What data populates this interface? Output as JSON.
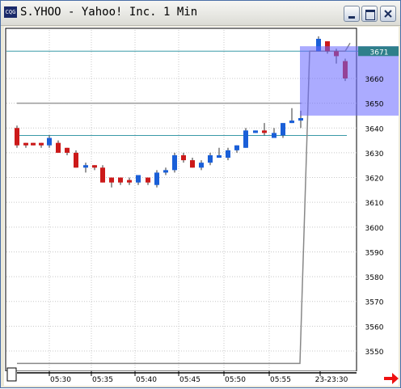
{
  "window": {
    "title": "S.YHOO - Yahoo! Inc. 1 Min",
    "icon": "chart-app-icon"
  },
  "chart_data": {
    "type": "candlestick",
    "price_ticks": [
      "3660",
      "3650",
      "3640",
      "3630",
      "3620",
      "3610",
      "3600",
      "3590",
      "3580",
      "3570",
      "3560",
      "3550"
    ],
    "price_tick_values": [
      3660,
      3650,
      3640,
      3630,
      3620,
      3610,
      3600,
      3590,
      3580,
      3570,
      3560,
      3550
    ],
    "time_ticks": [
      "05:30",
      "05:35",
      "05:40",
      "05:45",
      "05:50",
      "05:55",
      "23-23:30"
    ],
    "ylim": [
      3545,
      3676
    ],
    "current_price_label": "3671",
    "current_price": 3671,
    "horizontal_lines": [
      3671,
      3650,
      3637
    ],
    "candles": [
      {
        "o": 3633,
        "c": 3640,
        "h": 3641,
        "l": 3632,
        "d": "down"
      },
      {
        "o": 3633,
        "c": 3634,
        "h": 3634,
        "l": 3632,
        "d": "down"
      },
      {
        "o": 3633,
        "c": 3634,
        "h": 3634,
        "l": 3633,
        "d": "down"
      },
      {
        "o": 3633,
        "c": 3634,
        "h": 3634,
        "l": 3632,
        "d": "down"
      },
      {
        "o": 3633,
        "c": 3636,
        "h": 3637,
        "l": 3632,
        "d": "up"
      },
      {
        "o": 3630,
        "c": 3634,
        "h": 3635,
        "l": 3630,
        "d": "down"
      },
      {
        "o": 3630,
        "c": 3632,
        "h": 3632,
        "l": 3629,
        "d": "down"
      },
      {
        "o": 3624,
        "c": 3630,
        "h": 3631,
        "l": 3624,
        "d": "down"
      },
      {
        "o": 3624,
        "c": 3625,
        "h": 3626,
        "l": 3622,
        "d": "up"
      },
      {
        "o": 3624,
        "c": 3625,
        "h": 3625,
        "l": 3623,
        "d": "down"
      },
      {
        "o": 3618,
        "c": 3624,
        "h": 3625,
        "l": 3618,
        "d": "down"
      },
      {
        "o": 3618,
        "c": 3620,
        "h": 3620,
        "l": 3616,
        "d": "down"
      },
      {
        "o": 3618,
        "c": 3620,
        "h": 3620,
        "l": 3617,
        "d": "down"
      },
      {
        "o": 3618,
        "c": 3619,
        "h": 3620,
        "l": 3617,
        "d": "down"
      },
      {
        "o": 3618,
        "c": 3621,
        "h": 3621,
        "l": 3617,
        "d": "up"
      },
      {
        "o": 3618,
        "c": 3620,
        "h": 3620,
        "l": 3617,
        "d": "down"
      },
      {
        "o": 3617,
        "c": 3622,
        "h": 3623,
        "l": 3616,
        "d": "up"
      },
      {
        "o": 3622,
        "c": 3623,
        "h": 3624,
        "l": 3621,
        "d": "up"
      },
      {
        "o": 3623,
        "c": 3629,
        "h": 3630,
        "l": 3622,
        "d": "up"
      },
      {
        "o": 3627,
        "c": 3629,
        "h": 3630,
        "l": 3626,
        "d": "down"
      },
      {
        "o": 3624,
        "c": 3627,
        "h": 3628,
        "l": 3624,
        "d": "down"
      },
      {
        "o": 3624,
        "c": 3626,
        "h": 3627,
        "l": 3623,
        "d": "up"
      },
      {
        "o": 3626,
        "c": 3629,
        "h": 3630,
        "l": 3625,
        "d": "up"
      },
      {
        "o": 3628,
        "c": 3629,
        "h": 3632,
        "l": 3628,
        "d": "up"
      },
      {
        "o": 3628,
        "c": 3631,
        "h": 3632,
        "l": 3627,
        "d": "up"
      },
      {
        "o": 3631,
        "c": 3633,
        "h": 3633,
        "l": 3630,
        "d": "up"
      },
      {
        "o": 3632,
        "c": 3639,
        "h": 3640,
        "l": 3632,
        "d": "up"
      },
      {
        "o": 3638,
        "c": 3639,
        "h": 3639,
        "l": 3638,
        "d": "up"
      },
      {
        "o": 3638,
        "c": 3639,
        "h": 3642,
        "l": 3637,
        "d": "down"
      },
      {
        "o": 3636,
        "c": 3638,
        "h": 3640,
        "l": 3636,
        "d": "up"
      },
      {
        "o": 3637,
        "c": 3642,
        "h": 3642,
        "l": 3636,
        "d": "up"
      },
      {
        "o": 3642,
        "c": 3643,
        "h": 3648,
        "l": 3642,
        "d": "up"
      },
      {
        "o": 3643,
        "c": 3644,
        "h": 3647,
        "l": 3640,
        "d": "up"
      },
      {
        "o": 3671,
        "c": 3676,
        "h": 3677,
        "l": 3671,
        "d": "up"
      },
      {
        "o": 3671,
        "c": 3675,
        "h": 3675,
        "l": 3670,
        "d": "down"
      },
      {
        "o": 3669,
        "c": 3671,
        "h": 3672,
        "l": 3666,
        "d": "down"
      },
      {
        "o": 3660,
        "c": 3667,
        "h": 3668,
        "l": 3659,
        "d": "down"
      }
    ],
    "step_line": {
      "from": 3545,
      "to": 3671
    }
  },
  "colors": {
    "up": "#1a5fd8",
    "down": "#cc1a1a",
    "highlight": "#6666ff",
    "hline_teal": "#3a9aa8",
    "hline_gray": "#9a9a9a",
    "price_box": "#2e7f8a",
    "arrow": "#ee1111"
  }
}
